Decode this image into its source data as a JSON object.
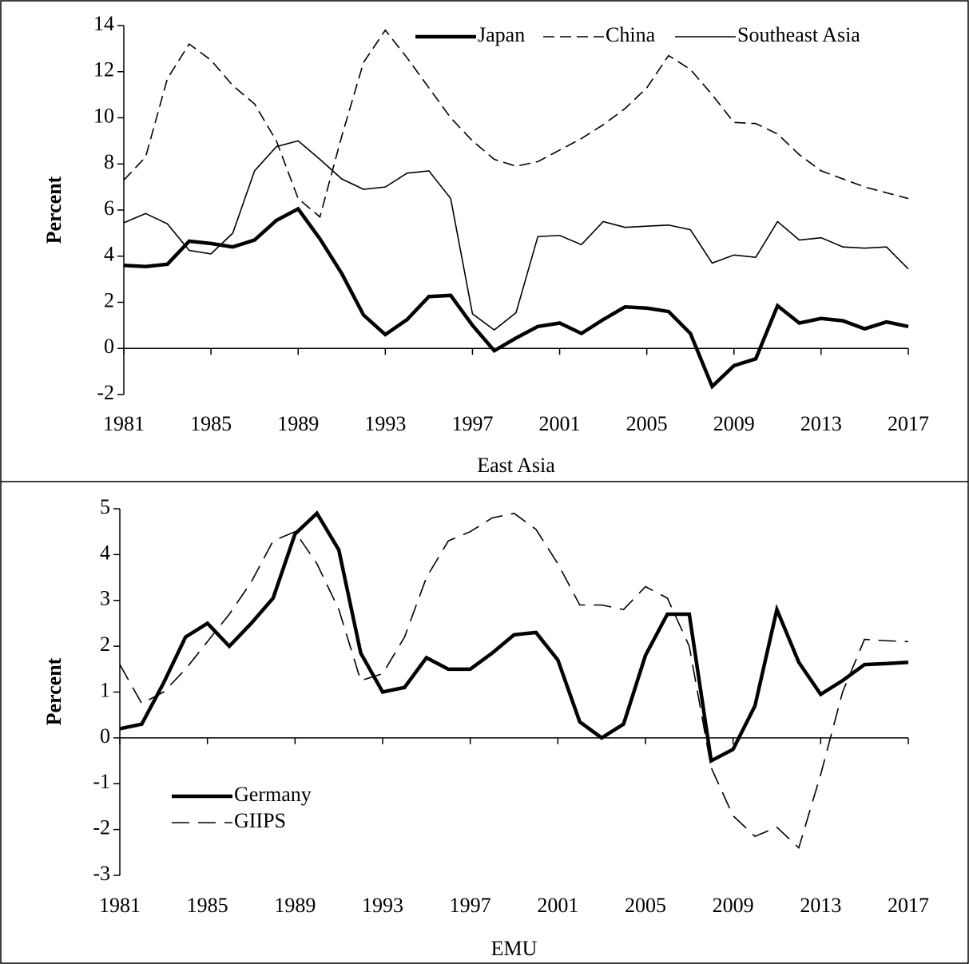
{
  "chart_data": [
    {
      "type": "line",
      "ylabel": "Percent",
      "xlabel": "East Asia",
      "x": [
        1981,
        1982,
        1983,
        1984,
        1985,
        1986,
        1987,
        1988,
        1989,
        1990,
        1991,
        1992,
        1993,
        1994,
        1995,
        1996,
        1997,
        1998,
        1999,
        2000,
        2001,
        2002,
        2003,
        2004,
        2005,
        2006,
        2007,
        2008,
        2009,
        2010,
        2011,
        2012,
        2013,
        2014,
        2015,
        2016,
        2017
      ],
      "xlim": [
        1981,
        2017
      ],
      "xticks": [
        1981,
        1985,
        1989,
        1993,
        1997,
        2001,
        2005,
        2009,
        2013,
        2017
      ],
      "ylim": [
        -2,
        14
      ],
      "yticks": [
        -2,
        0,
        2,
        4,
        6,
        8,
        10,
        12,
        14
      ],
      "legend": "top-right",
      "series": [
        {
          "name": "Japan",
          "color": "#000000",
          "style": "thick",
          "values": [
            3.6,
            3.55,
            3.65,
            4.65,
            4.55,
            4.4,
            4.7,
            5.55,
            6.05,
            4.75,
            3.25,
            1.45,
            0.6,
            1.25,
            2.25,
            2.3,
            1.0,
            -0.1,
            0.45,
            0.95,
            1.1,
            0.65,
            1.25,
            1.8,
            1.75,
            1.6,
            0.65,
            -1.65,
            -0.75,
            -0.45,
            1.85,
            1.1,
            1.3,
            1.2,
            0.85,
            1.15,
            0.95
          ]
        },
        {
          "name": "China",
          "color": "#000000",
          "style": "dashed",
          "values": [
            7.3,
            8.3,
            11.7,
            13.2,
            12.5,
            11.4,
            10.6,
            9.0,
            6.5,
            5.7,
            9.2,
            12.4,
            13.8,
            12.6,
            11.3,
            10.0,
            9.0,
            8.2,
            7.9,
            8.1,
            8.6,
            9.1,
            9.7,
            10.4,
            11.3,
            12.7,
            12.1,
            11.0,
            9.8,
            9.75,
            9.3,
            8.4,
            7.7,
            7.35,
            7.0,
            6.75,
            6.5
          ]
        },
        {
          "name": "Southeast Asia",
          "color": "#000000",
          "style": "solid",
          "values": [
            5.45,
            5.85,
            5.4,
            4.25,
            4.1,
            5.0,
            7.7,
            8.75,
            9.0,
            8.2,
            7.35,
            6.9,
            7.0,
            7.6,
            7.7,
            6.5,
            1.5,
            0.8,
            1.55,
            4.85,
            4.9,
            4.5,
            5.5,
            5.25,
            5.3,
            5.35,
            5.15,
            3.7,
            4.05,
            3.95,
            5.5,
            4.7,
            4.8,
            4.4,
            4.35,
            4.4,
            3.45
          ]
        }
      ]
    },
    {
      "type": "line",
      "ylabel": "Percent",
      "xlabel": "EMU",
      "x": [
        1981,
        1982,
        1983,
        1984,
        1985,
        1986,
        1987,
        1988,
        1989,
        1990,
        1991,
        1992,
        1993,
        1994,
        1995,
        1996,
        1997,
        1998,
        1999,
        2000,
        2001,
        2002,
        2003,
        2004,
        2005,
        2006,
        2007,
        2008,
        2009,
        2010,
        2011,
        2012,
        2013,
        2014,
        2015,
        2016,
        2017
      ],
      "xlim": [
        1981,
        2017
      ],
      "xticks": [
        1981,
        1985,
        1989,
        1993,
        1997,
        2001,
        2005,
        2009,
        2013,
        2017
      ],
      "ylim": [
        -3,
        5
      ],
      "yticks": [
        -3,
        -2,
        -1,
        0,
        1,
        2,
        3,
        4,
        5
      ],
      "legend": "bottom-left",
      "series": [
        {
          "name": "Germany",
          "color": "#000000",
          "style": "thick",
          "values": [
            0.2,
            0.3,
            1.2,
            2.2,
            2.5,
            2.0,
            2.5,
            3.05,
            4.45,
            4.9,
            4.1,
            1.85,
            1.0,
            1.1,
            1.75,
            1.5,
            1.5,
            1.85,
            2.25,
            2.3,
            1.7,
            0.35,
            0.0,
            0.3,
            1.8,
            2.7,
            2.7,
            -0.5,
            -0.25,
            0.7,
            2.8,
            1.65,
            0.95,
            1.25,
            1.6,
            1.62,
            1.65
          ]
        },
        {
          "name": "GIIPS",
          "color": "#000000",
          "style": "longdash",
          "values": [
            1.6,
            0.75,
            1.0,
            1.5,
            2.1,
            2.7,
            3.4,
            4.3,
            4.5,
            3.8,
            2.8,
            1.25,
            1.4,
            2.2,
            3.5,
            4.3,
            4.5,
            4.8,
            4.9,
            4.55,
            3.8,
            2.9,
            2.9,
            2.8,
            3.3,
            3.05,
            2.0,
            -0.65,
            -1.7,
            -2.15,
            -1.95,
            -2.4,
            -0.8,
            1.0,
            2.15,
            2.12,
            2.1
          ]
        }
      ]
    }
  ]
}
